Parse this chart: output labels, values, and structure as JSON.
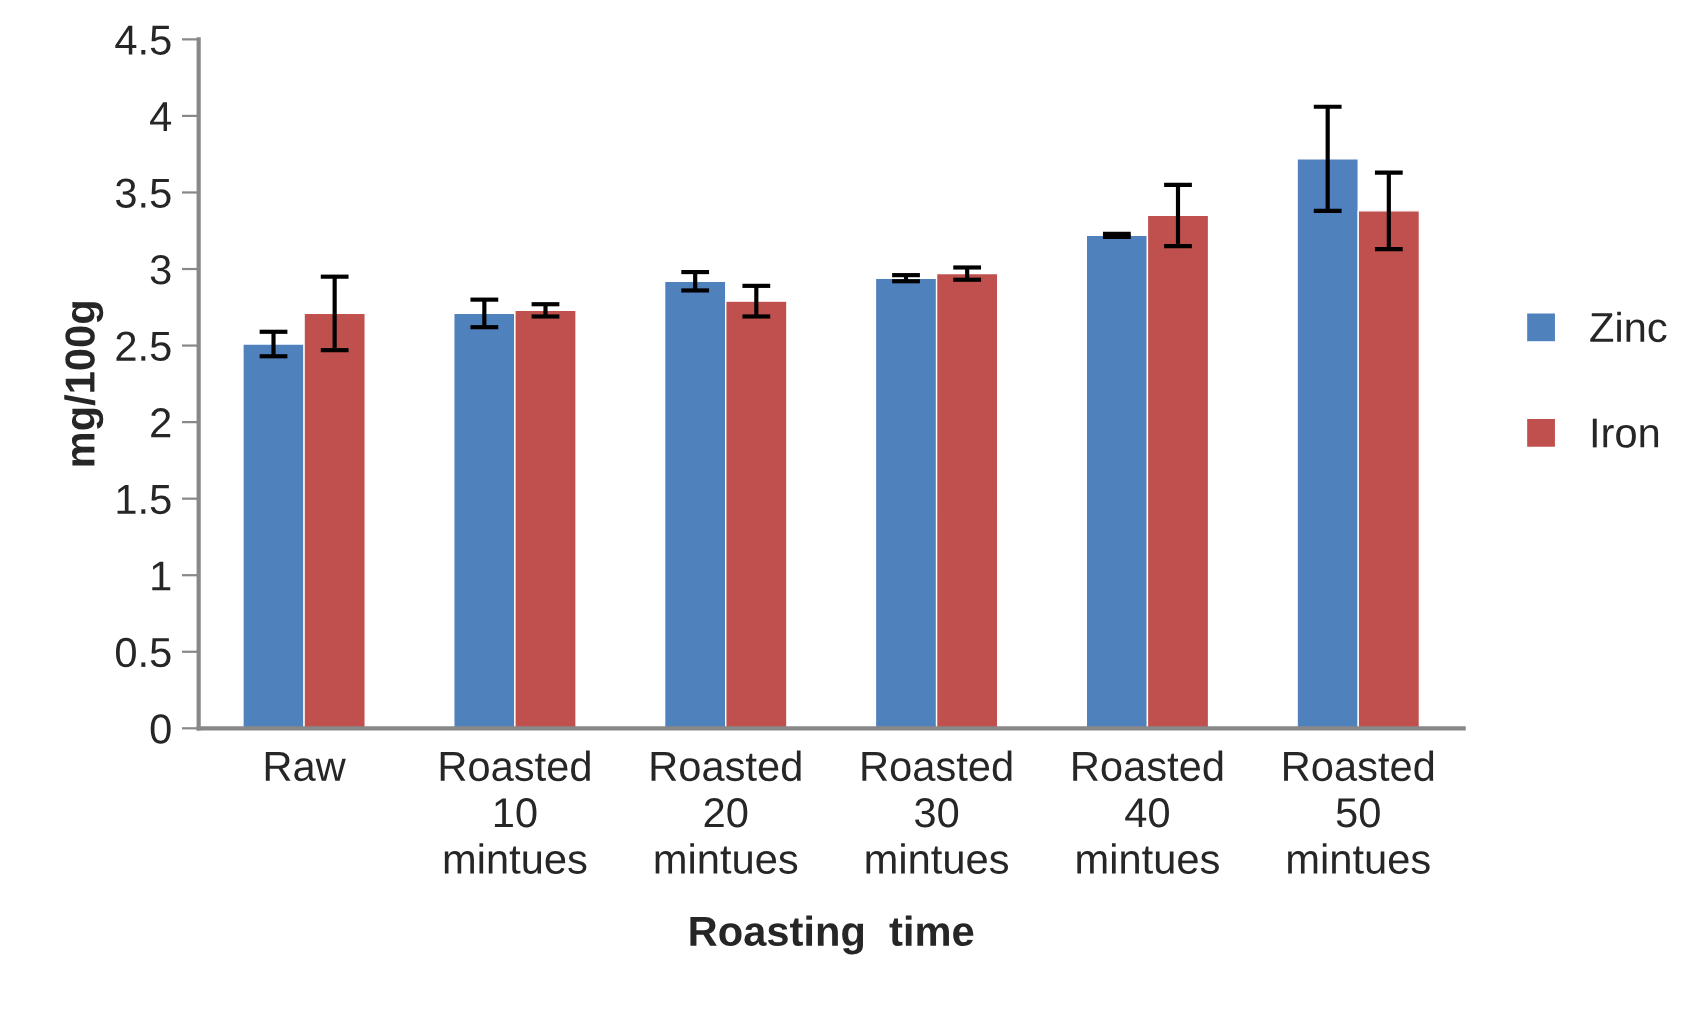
{
  "chart_data": {
    "type": "bar",
    "xlabel": "Roasting  time",
    "ylabel": "mg/100g",
    "categories": [
      "Raw",
      "Roasted\n10\nmintues",
      "Roasted\n20\nmintues",
      "Roasted\n30\nmintues",
      "Roasted\n40\nmintues",
      "Roasted\n50\nmintues"
    ],
    "series": [
      {
        "name": "Zinc",
        "color": "#4f81bd",
        "values": [
          2.51,
          2.71,
          2.92,
          2.94,
          3.22,
          3.72
        ],
        "errors": [
          0.08,
          0.09,
          0.06,
          0.02,
          0.01,
          0.34
        ]
      },
      {
        "name": "Iron",
        "color": "#c0504d",
        "values": [
          2.71,
          2.73,
          2.79,
          2.97,
          3.35,
          3.38
        ],
        "errors": [
          0.24,
          0.04,
          0.1,
          0.04,
          0.2,
          0.25
        ]
      }
    ],
    "ylim": [
      0,
      4.5
    ],
    "yticks": [
      0,
      0.5,
      1,
      1.5,
      2,
      2.5,
      3,
      3.5,
      4,
      4.5
    ],
    "grid": false,
    "legend": "right"
  }
}
